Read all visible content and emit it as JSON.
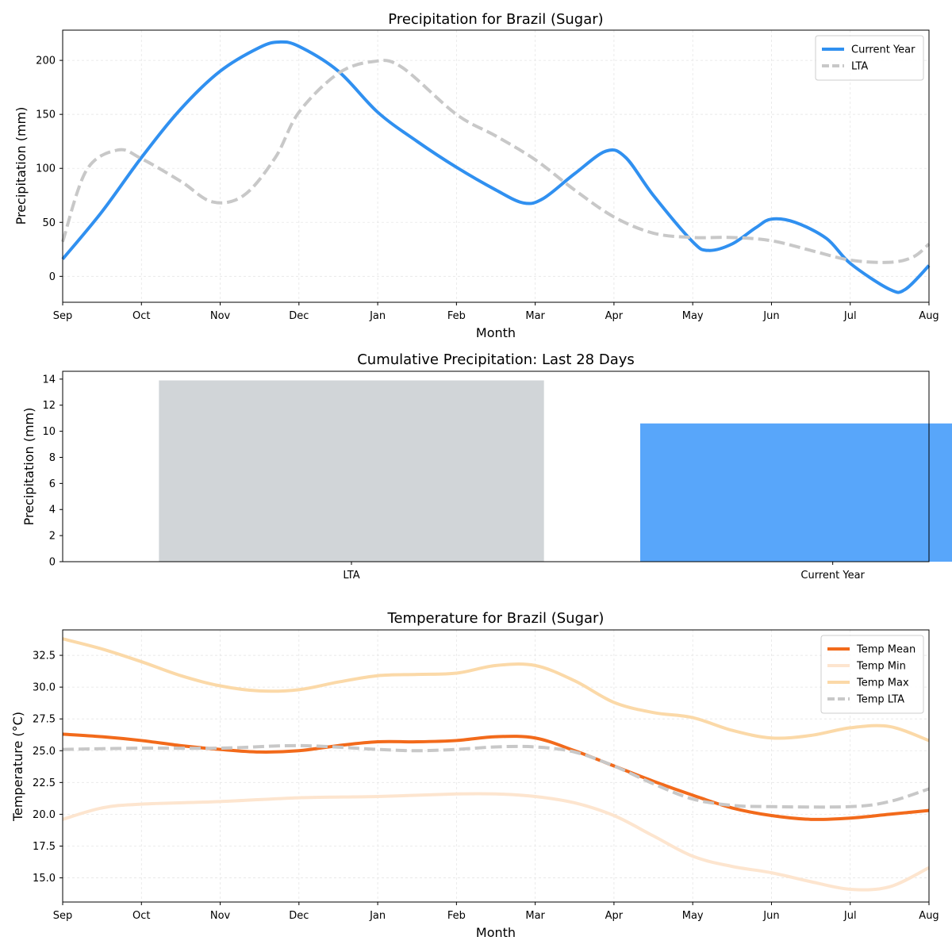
{
  "chart_data": [
    {
      "type": "line",
      "title": "Precipitation for Brazil (Sugar)",
      "xlabel": "Month",
      "ylabel": "Precipitation (mm)",
      "categories": [
        "Sep",
        "Oct",
        "Nov",
        "Dec",
        "Jan",
        "Feb",
        "Mar",
        "Apr",
        "May",
        "Jun",
        "Jul",
        "Aug"
      ],
      "ylim": [
        -24,
        228
      ],
      "yticks": [
        0,
        50,
        100,
        150,
        200
      ],
      "grid": true,
      "legend_position": "top-right",
      "series": [
        {
          "name": "Current Year",
          "color": "#3090f0",
          "style": "solid",
          "points": [
            [
              0,
              16
            ],
            [
              0.5,
              60
            ],
            [
              1,
              110
            ],
            [
              1.5,
              155
            ],
            [
              2,
              190
            ],
            [
              2.5,
              212
            ],
            [
              2.75,
              217
            ],
            [
              3,
              213
            ],
            [
              3.5,
              190
            ],
            [
              4,
              152
            ],
            [
              4.5,
              125
            ],
            [
              5,
              101
            ],
            [
              5.5,
              80
            ],
            [
              5.85,
              68
            ],
            [
              6.1,
              72
            ],
            [
              6.5,
              95
            ],
            [
              6.9,
              116
            ],
            [
              7.15,
              110
            ],
            [
              7.5,
              75
            ],
            [
              8,
              32
            ],
            [
              8.2,
              24
            ],
            [
              8.5,
              30
            ],
            [
              8.8,
              45
            ],
            [
              9,
              53
            ],
            [
              9.3,
              50
            ],
            [
              9.7,
              35
            ],
            [
              10,
              12
            ],
            [
              10.5,
              -12
            ],
            [
              10.7,
              -12
            ],
            [
              11,
              10
            ]
          ]
        },
        {
          "name": "LTA",
          "color": "#c8c8c8",
          "style": "dashed",
          "points": [
            [
              0,
              32
            ],
            [
              0.3,
              98
            ],
            [
              0.7,
              117
            ],
            [
              1,
              109
            ],
            [
              1.5,
              88
            ],
            [
              1.9,
              69
            ],
            [
              2.3,
              75
            ],
            [
              2.7,
              110
            ],
            [
              3,
              152
            ],
            [
              3.5,
              188
            ],
            [
              3.95,
              199
            ],
            [
              4.3,
              194
            ],
            [
              5,
              150
            ],
            [
              5.5,
              130
            ],
            [
              6,
              108
            ],
            [
              6.5,
              80
            ],
            [
              7,
              55
            ],
            [
              7.5,
              40
            ],
            [
              8,
              36
            ],
            [
              8.5,
              36
            ],
            [
              9,
              33
            ],
            [
              9.5,
              24
            ],
            [
              10,
              15
            ],
            [
              10.5,
              13
            ],
            [
              10.8,
              18
            ],
            [
              11,
              30
            ]
          ]
        }
      ]
    },
    {
      "type": "bar",
      "title": "Cumulative Precipitation: Last 28 Days",
      "xlabel": "",
      "ylabel": "Precipitation (mm)",
      "categories": [
        "LTA",
        "Current Year"
      ],
      "values": [
        13.9,
        10.6
      ],
      "colors": [
        "#d1d5d8",
        "#58a6fa"
      ],
      "ylim": [
        0,
        14.6
      ],
      "yticks": [
        0,
        2,
        4,
        6,
        8,
        10,
        12,
        14
      ],
      "grid": false
    },
    {
      "type": "line",
      "title": "Temperature for Brazil (Sugar)",
      "xlabel": "Month",
      "ylabel": "Temperature (°C)",
      "categories": [
        "Sep",
        "Oct",
        "Nov",
        "Dec",
        "Jan",
        "Feb",
        "Mar",
        "Apr",
        "May",
        "Jun",
        "Jul",
        "Aug"
      ],
      "ylim": [
        13.1,
        34.5
      ],
      "yticks": [
        15.0,
        17.5,
        20.0,
        22.5,
        25.0,
        27.5,
        30.0,
        32.5
      ],
      "grid": true,
      "legend_position": "top-right",
      "series": [
        {
          "name": "Temp Mean",
          "color": "#f26a1b",
          "style": "solid",
          "points": [
            [
              0,
              26.3
            ],
            [
              0.5,
              26.1
            ],
            [
              1,
              25.8
            ],
            [
              1.5,
              25.4
            ],
            [
              2,
              25.1
            ],
            [
              2.5,
              24.9
            ],
            [
              3,
              25.0
            ],
            [
              3.5,
              25.4
            ],
            [
              4,
              25.7
            ],
            [
              4.5,
              25.7
            ],
            [
              5,
              25.8
            ],
            [
              5.5,
              26.1
            ],
            [
              6,
              26.0
            ],
            [
              6.5,
              25.0
            ],
            [
              7,
              23.8
            ],
            [
              7.5,
              22.6
            ],
            [
              8,
              21.5
            ],
            [
              8.5,
              20.5
            ],
            [
              9,
              19.9
            ],
            [
              9.5,
              19.6
            ],
            [
              10,
              19.7
            ],
            [
              10.5,
              20.0
            ],
            [
              11,
              20.3
            ]
          ]
        },
        {
          "name": "Temp Min",
          "color": "#fde5cf",
          "style": "solid",
          "points": [
            [
              0,
              19.6
            ],
            [
              0.5,
              20.5
            ],
            [
              1,
              20.8
            ],
            [
              2,
              21.0
            ],
            [
              3,
              21.3
            ],
            [
              4,
              21.4
            ],
            [
              5,
              21.6
            ],
            [
              5.5,
              21.6
            ],
            [
              6,
              21.4
            ],
            [
              6.5,
              20.9
            ],
            [
              7,
              19.9
            ],
            [
              7.5,
              18.3
            ],
            [
              8,
              16.7
            ],
            [
              8.5,
              15.9
            ],
            [
              9,
              15.4
            ],
            [
              9.5,
              14.7
            ],
            [
              10,
              14.1
            ],
            [
              10.5,
              14.3
            ],
            [
              11,
              15.8
            ]
          ]
        },
        {
          "name": "Temp Max",
          "color": "#fbd9a8",
          "style": "solid",
          "points": [
            [
              0,
              33.8
            ],
            [
              0.5,
              33.0
            ],
            [
              1,
              32.0
            ],
            [
              1.5,
              30.9
            ],
            [
              2,
              30.1
            ],
            [
              2.5,
              29.7
            ],
            [
              3,
              29.8
            ],
            [
              3.5,
              30.4
            ],
            [
              4,
              30.9
            ],
            [
              4.5,
              31.0
            ],
            [
              5,
              31.1
            ],
            [
              5.5,
              31.7
            ],
            [
              6,
              31.7
            ],
            [
              6.5,
              30.5
            ],
            [
              7,
              28.8
            ],
            [
              7.5,
              28.0
            ],
            [
              8,
              27.6
            ],
            [
              8.5,
              26.6
            ],
            [
              9,
              26.0
            ],
            [
              9.5,
              26.2
            ],
            [
              10,
              26.8
            ],
            [
              10.5,
              26.9
            ],
            [
              11,
              25.8
            ]
          ]
        },
        {
          "name": "Temp LTA",
          "color": "#c8c8c8",
          "style": "dashed",
          "points": [
            [
              0,
              25.1
            ],
            [
              1,
              25.2
            ],
            [
              2,
              25.2
            ],
            [
              3,
              25.4
            ],
            [
              4,
              25.1
            ],
            [
              4.5,
              25.0
            ],
            [
              5,
              25.1
            ],
            [
              5.5,
              25.3
            ],
            [
              6,
              25.3
            ],
            [
              6.5,
              24.9
            ],
            [
              7,
              23.8
            ],
            [
              7.5,
              22.4
            ],
            [
              8,
              21.2
            ],
            [
              8.5,
              20.7
            ],
            [
              9,
              20.6
            ],
            [
              10,
              20.6
            ],
            [
              10.5,
              21.0
            ],
            [
              11,
              22.0
            ]
          ]
        }
      ]
    }
  ]
}
